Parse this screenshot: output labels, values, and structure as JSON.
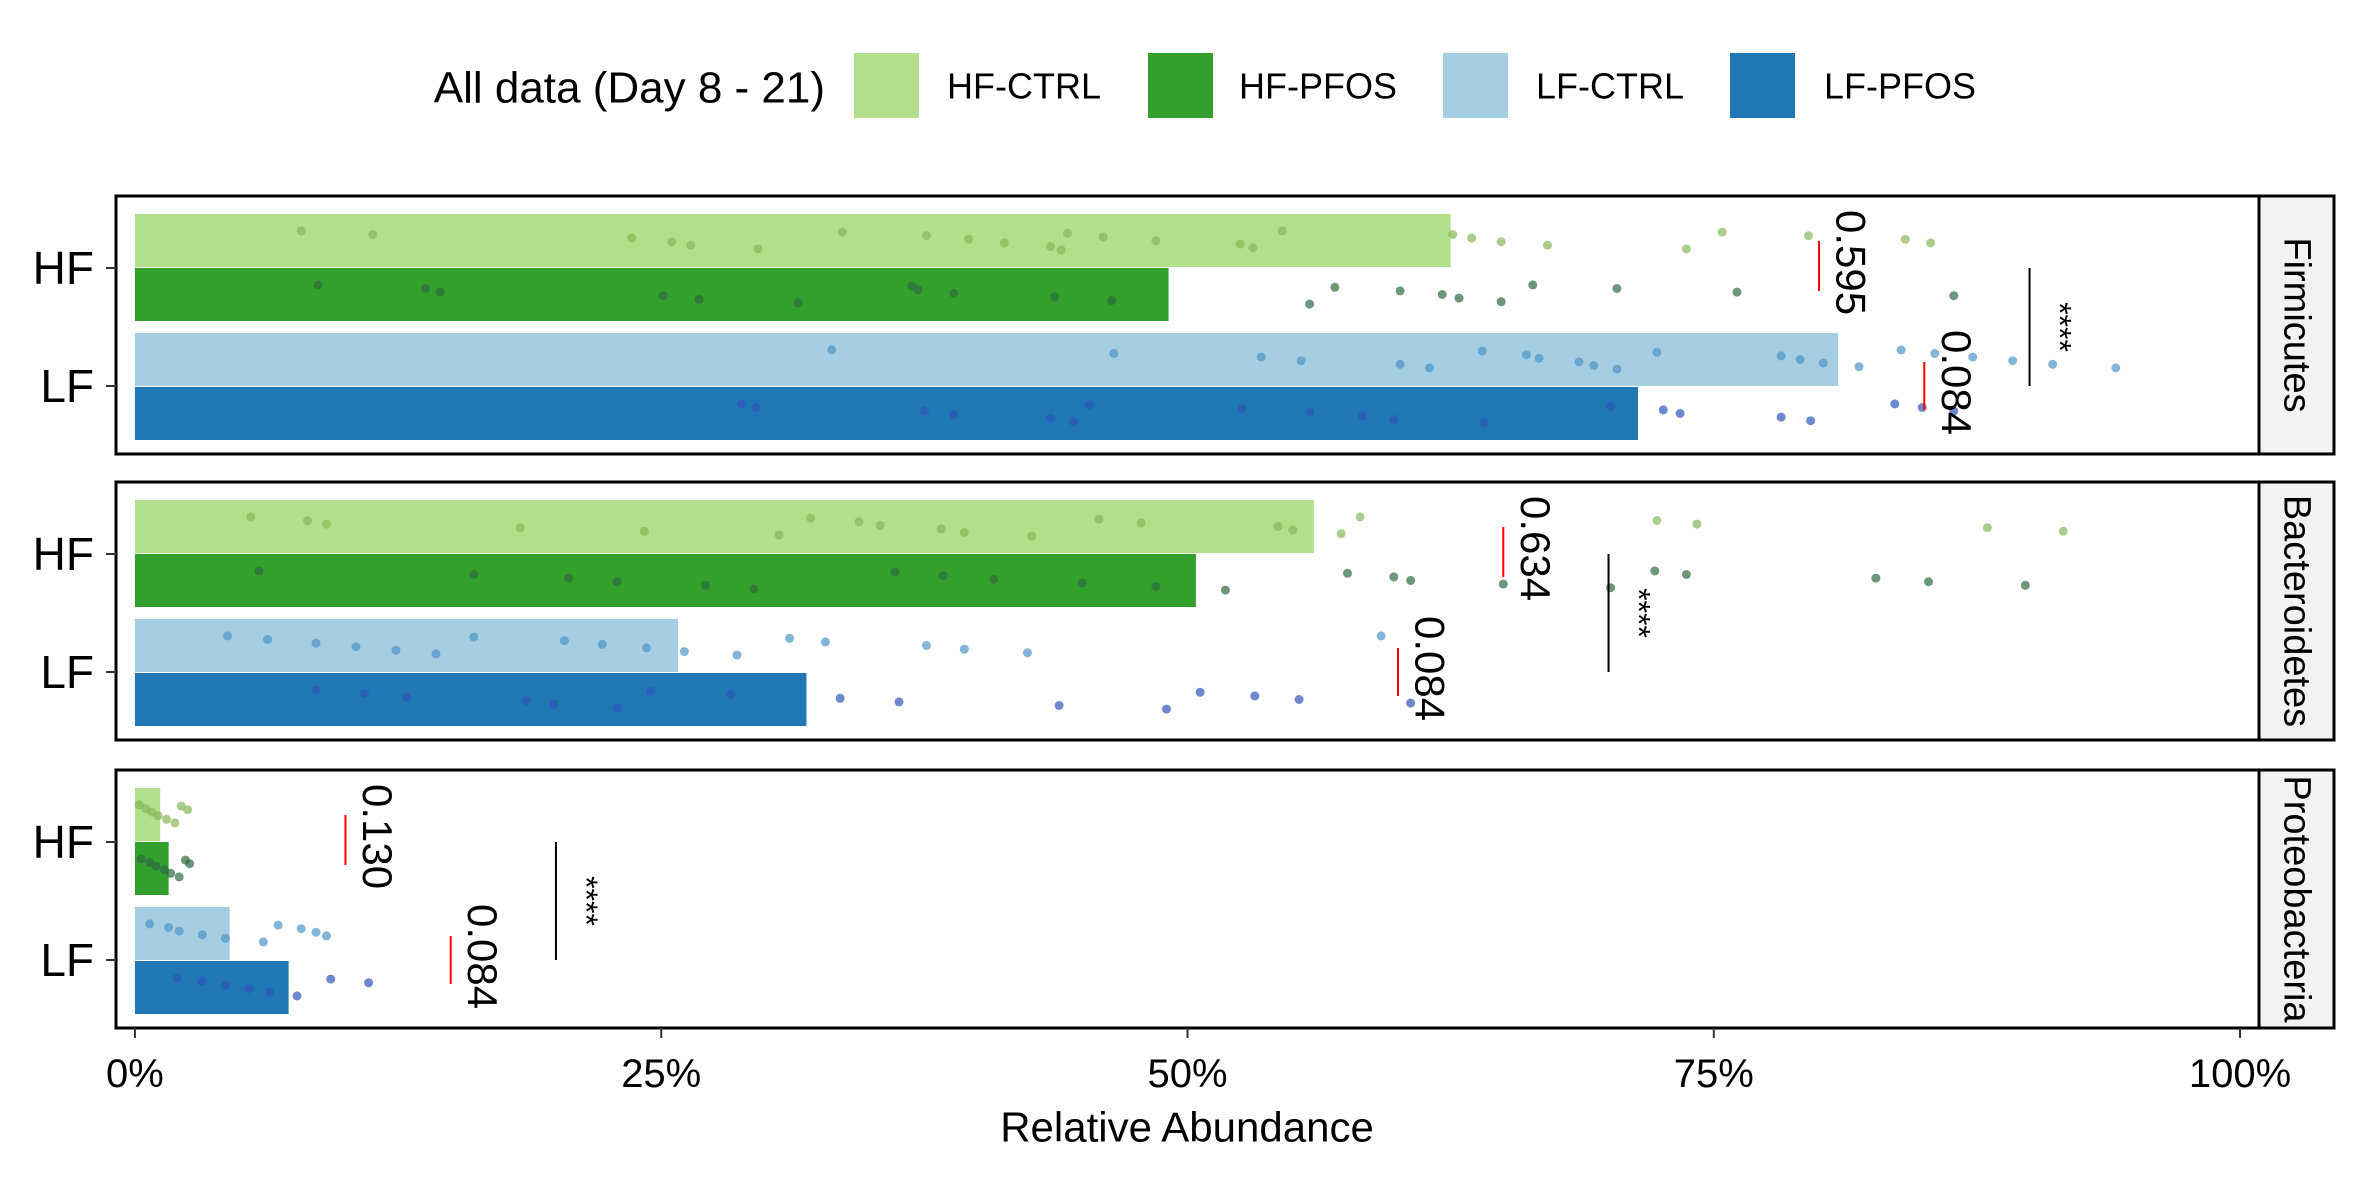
{
  "chart_data": {
    "type": "bar",
    "legend_title": "All data (Day 8 - 21)",
    "x_label": "Relative Abundance",
    "categories": [
      "HF",
      "LF"
    ],
    "series": [
      {
        "name": "HF-CTRL",
        "color": "#b2df8a",
        "point_color": "#86b85a"
      },
      {
        "name": "HF-PFOS",
        "color": "#33a02c",
        "point_color": "#2e6b3e"
      },
      {
        "name": "LF-CTRL",
        "color": "#a6cee3",
        "point_color": "#4f95c8"
      },
      {
        "name": "LF-PFOS",
        "color": "#1f78b4",
        "point_color": "#2f56b8"
      }
    ],
    "xlim": [
      -0.9,
      100.9
    ],
    "xticks": [
      {
        "value": 0,
        "label": "0%"
      },
      {
        "value": 25,
        "label": "25%"
      },
      {
        "value": 50,
        "label": "50%"
      },
      {
        "value": 75,
        "label": "75%"
      },
      {
        "value": 100,
        "label": "100%"
      }
    ],
    "panels": [
      {
        "label": "Firmicutes",
        "values": [
          62.5,
          49.1,
          80.9,
          71.4
        ],
        "points": [
          [
            7.9,
            11.3,
            23.6,
            25.5,
            26.4,
            29.6,
            33.6,
            37.6,
            39.6,
            41.3,
            43.5,
            44.0,
            44.3,
            46.0,
            48.5,
            52.5,
            53.1,
            54.5,
            62.6,
            63.5,
            64.9,
            67.1,
            73.7,
            75.4,
            79.5,
            84.1,
            85.3
          ],
          [
            8.7,
            13.8,
            14.5,
            25.1,
            26.8,
            31.5,
            36.9,
            37.2,
            38.9,
            43.7,
            46.4,
            55.8,
            57.0,
            60.1,
            62.1,
            62.9,
            64.9,
            66.4,
            70.4,
            76.1,
            86.4
          ],
          [
            33.1,
            46.5,
            53.5,
            55.4,
            60.1,
            61.5,
            64.0,
            66.1,
            66.7,
            68.6,
            69.3,
            70.4,
            72.3,
            78.2,
            79.1,
            80.2,
            81.9,
            83.9,
            85.5,
            87.3,
            89.2,
            91.1,
            94.1
          ],
          [
            28.8,
            29.5,
            37.5,
            38.9,
            43.5,
            44.6,
            45.3,
            52.6,
            55.8,
            58.3,
            59.8,
            64.1,
            70.1,
            72.6,
            73.4,
            78.2,
            79.6,
            83.6,
            84.9,
            86.4
          ]
        ],
        "tests": [
          {
            "label": "0.595",
            "x": 80
          },
          {
            "label": "0.084",
            "x": 85
          },
          {
            "label": "****",
            "x": 90
          }
        ]
      },
      {
        "label": "Bacteroidetes",
        "values": [
          56.0,
          50.4,
          25.8,
          31.9
        ],
        "points": [
          [
            5.5,
            8.2,
            9.1,
            18.3,
            24.2,
            30.6,
            32.1,
            34.4,
            35.4,
            38.3,
            39.4,
            42.6,
            45.8,
            47.8,
            54.3,
            55.0,
            57.3,
            58.2,
            72.3,
            74.2,
            88.0,
            91.6
          ],
          [
            5.9,
            16.1,
            20.6,
            22.9,
            27.1,
            29.4,
            36.1,
            38.4,
            40.8,
            45.0,
            48.5,
            51.8,
            57.6,
            59.8,
            60.6,
            65.0,
            70.1,
            72.2,
            73.7,
            82.7,
            85.2,
            89.8
          ],
          [
            4.4,
            6.3,
            8.6,
            10.5,
            12.4,
            14.3,
            16.1,
            20.4,
            22.2,
            24.3,
            26.1,
            28.6,
            31.1,
            32.8,
            37.6,
            39.4,
            42.4,
            59.2
          ],
          [
            8.6,
            10.9,
            12.9,
            18.6,
            19.9,
            22.9,
            24.5,
            28.3,
            33.5,
            36.3,
            43.9,
            49.0,
            50.6,
            53.2,
            55.3,
            60.6
          ]
        ],
        "tests": [
          {
            "label": "0.634",
            "x": 65
          },
          {
            "label": "0.084",
            "x": 60
          },
          {
            "label": "****",
            "x": 70
          }
        ]
      },
      {
        "label": "Proteobacteria",
        "values": [
          1.2,
          1.6,
          4.5,
          7.3
        ],
        "points": [
          [
            0.2,
            0.5,
            0.8,
            1.1,
            1.5,
            1.9,
            2.2,
            2.5
          ],
          [
            0.3,
            0.7,
            1.0,
            1.4,
            1.7,
            2.1,
            2.4,
            2.6
          ],
          [
            0.7,
            1.6,
            2.1,
            3.2,
            4.3,
            6.1,
            6.8,
            7.9,
            8.6,
            9.1
          ],
          [
            2.0,
            3.2,
            4.3,
            5.4,
            6.4,
            7.7,
            9.3,
            11.1
          ]
        ],
        "tests": [
          {
            "label": "0.130",
            "x": 10
          },
          {
            "label": "0.084",
            "x": 15
          },
          {
            "label": "****",
            "x": 20
          }
        ]
      }
    ]
  }
}
